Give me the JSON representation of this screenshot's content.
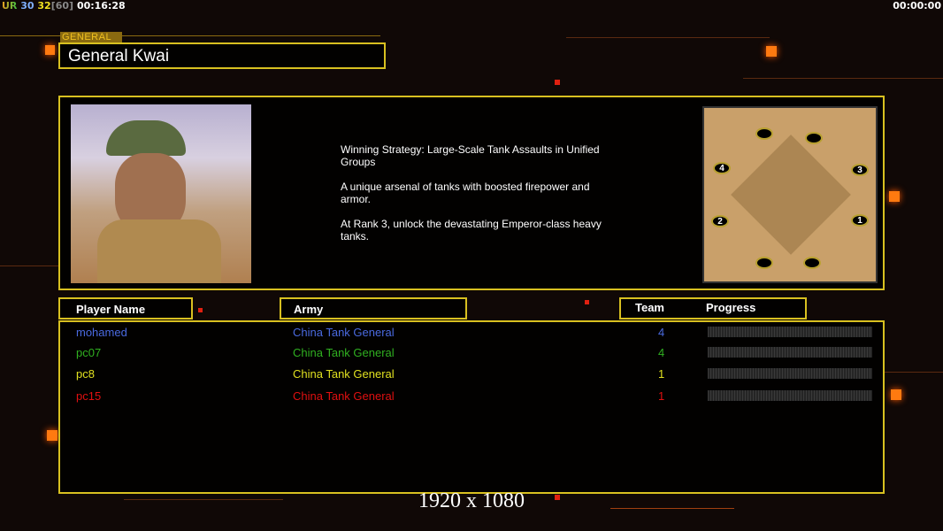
{
  "hud": {
    "ur": "UR",
    "fps": "30",
    "fps2": "32",
    "fps_cap": "[60]",
    "time": "00:16:28",
    "time_right": "00:00:00"
  },
  "general": {
    "tag": "GENERAL",
    "name": "General Kwai",
    "description": "Winning Strategy: Large-Scale Tank Assaults in Unified\n Groups\n\nA unique arsenal of tanks with boosted firepower and\n armor.\n\nAt Rank 3, unlock the devastating Emperor-class heavy\n tanks."
  },
  "map": {
    "starts": [
      "1",
      "2",
      "3",
      "4"
    ]
  },
  "headers": {
    "player": "Player Name",
    "army": "Army",
    "team": "Team",
    "progress": "Progress"
  },
  "players": [
    {
      "name": "mohamed",
      "army": "China Tank General",
      "team": "4",
      "color": "#4a6ae0",
      "progress": 0
    },
    {
      "name": "pc07",
      "army": "China Tank General",
      "team": "4",
      "color": "#30b020",
      "progress": 0
    },
    {
      "name": "pc8",
      "army": "China Tank General",
      "team": "1",
      "color": "#e0e020",
      "progress": 0
    },
    {
      "name": "pc15",
      "army": "China Tank General",
      "team": "1",
      "color": "#e01010",
      "progress": 0
    }
  ],
  "resolution": "1920 x 1080"
}
